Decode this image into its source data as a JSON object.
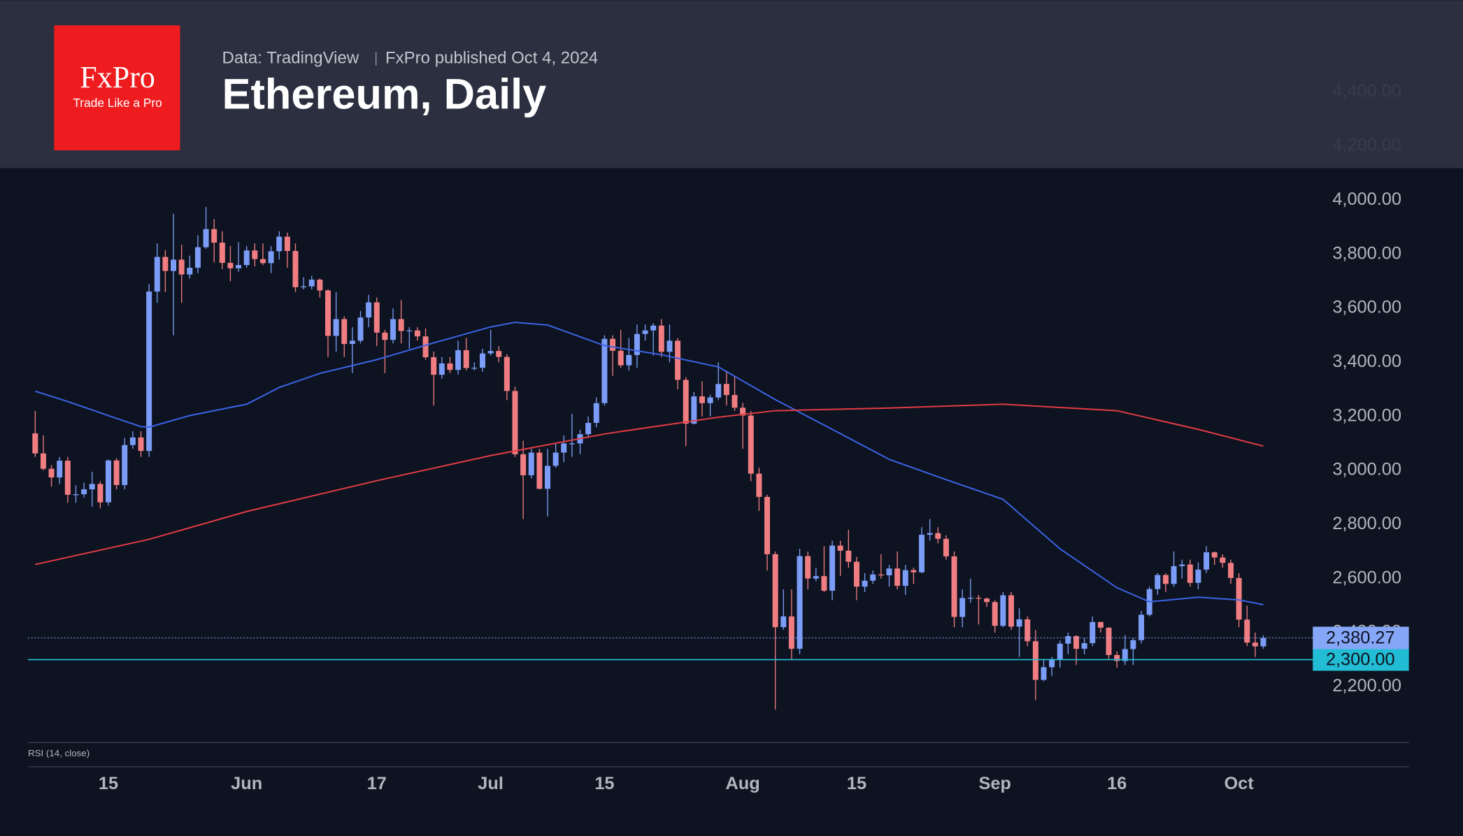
{
  "chart_data": {
    "type": "candlestick",
    "title": "Ethereum, Daily",
    "source": "Data: TradingView",
    "published": "FxPro published Oct 4, 2024",
    "brand": {
      "name": "FxPro",
      "tagline": "Trade Like a Pro"
    },
    "indicator_label": "RSI (14, close)",
    "up_color": "#7b9cf7",
    "down_color": "#f07d82",
    "xlim": [
      "2024-05-05",
      "2024-10-11"
    ],
    "ylim": [
      2000,
      4740
    ],
    "xticks": [
      {
        "value": "2024-05-15",
        "label": "15"
      },
      {
        "value": "2024-06-01",
        "label": "Jun"
      },
      {
        "value": "2024-06-17",
        "label": "17"
      },
      {
        "value": "2024-07-01",
        "label": "Jul"
      },
      {
        "value": "2024-07-15",
        "label": "15"
      },
      {
        "value": "2024-08-01",
        "label": "Aug"
      },
      {
        "value": "2024-08-15",
        "label": "15"
      },
      {
        "value": "2024-09-01",
        "label": "Sep"
      },
      {
        "value": "2024-09-16",
        "label": "16"
      },
      {
        "value": "2024-10-01",
        "label": "Oct"
      }
    ],
    "yticks": [
      {
        "value": 2200,
        "label": "2,200.00"
      },
      {
        "value": 2400,
        "label": "2,400.00"
      },
      {
        "value": 2600,
        "label": "2,600.00"
      },
      {
        "value": 2800,
        "label": "2,800.00"
      },
      {
        "value": 3000,
        "label": "3,000.00"
      },
      {
        "value": 3200,
        "label": "3,200.00"
      },
      {
        "value": 3400,
        "label": "3,400.00"
      },
      {
        "value": 3600,
        "label": "3,600.00"
      },
      {
        "value": 3800,
        "label": "3,800.00"
      },
      {
        "value": 4000,
        "label": "4,000.00"
      },
      {
        "value": 4200,
        "label": "4,200.00"
      },
      {
        "value": 4400,
        "label": "4,400.00"
      }
    ],
    "x": [
      "2024-05-06",
      "2024-05-07",
      "2024-05-08",
      "2024-05-09",
      "2024-05-10",
      "2024-05-11",
      "2024-05-12",
      "2024-05-13",
      "2024-05-14",
      "2024-05-15",
      "2024-05-16",
      "2024-05-17",
      "2024-05-18",
      "2024-05-19",
      "2024-05-20",
      "2024-05-21",
      "2024-05-22",
      "2024-05-23",
      "2024-05-24",
      "2024-05-25",
      "2024-05-26",
      "2024-05-27",
      "2024-05-28",
      "2024-05-29",
      "2024-05-30",
      "2024-05-31",
      "2024-06-01",
      "2024-06-02",
      "2024-06-03",
      "2024-06-04",
      "2024-06-05",
      "2024-06-06",
      "2024-06-07",
      "2024-06-08",
      "2024-06-09",
      "2024-06-10",
      "2024-06-11",
      "2024-06-12",
      "2024-06-13",
      "2024-06-14",
      "2024-06-15",
      "2024-06-16",
      "2024-06-17",
      "2024-06-18",
      "2024-06-19",
      "2024-06-20",
      "2024-06-21",
      "2024-06-22",
      "2024-06-23",
      "2024-06-24",
      "2024-06-25",
      "2024-06-26",
      "2024-06-27",
      "2024-06-28",
      "2024-06-29",
      "2024-06-30",
      "2024-07-01",
      "2024-07-02",
      "2024-07-03",
      "2024-07-04",
      "2024-07-05",
      "2024-07-06",
      "2024-07-07",
      "2024-07-08",
      "2024-07-09",
      "2024-07-10",
      "2024-07-11",
      "2024-07-12",
      "2024-07-13",
      "2024-07-14",
      "2024-07-15",
      "2024-07-16",
      "2024-07-17",
      "2024-07-18",
      "2024-07-19",
      "2024-07-20",
      "2024-07-21",
      "2024-07-22",
      "2024-07-23",
      "2024-07-24",
      "2024-07-25",
      "2024-07-26",
      "2024-07-27",
      "2024-07-28",
      "2024-07-29",
      "2024-07-30",
      "2024-07-31",
      "2024-08-01",
      "2024-08-02",
      "2024-08-03",
      "2024-08-04",
      "2024-08-05",
      "2024-08-06",
      "2024-08-07",
      "2024-08-08",
      "2024-08-09",
      "2024-08-10",
      "2024-08-11",
      "2024-08-12",
      "2024-08-13",
      "2024-08-14",
      "2024-08-15",
      "2024-08-16",
      "2024-08-17",
      "2024-08-18",
      "2024-08-19",
      "2024-08-20",
      "2024-08-21",
      "2024-08-22",
      "2024-08-23",
      "2024-08-24",
      "2024-08-25",
      "2024-08-26",
      "2024-08-27",
      "2024-08-28",
      "2024-08-29",
      "2024-08-30",
      "2024-08-31",
      "2024-09-01",
      "2024-09-02",
      "2024-09-03",
      "2024-09-04",
      "2024-09-05",
      "2024-09-06",
      "2024-09-07",
      "2024-09-08",
      "2024-09-09",
      "2024-09-10",
      "2024-09-11",
      "2024-09-12",
      "2024-09-13",
      "2024-09-14",
      "2024-09-15",
      "2024-09-16",
      "2024-09-17",
      "2024-09-18",
      "2024-09-19",
      "2024-09-20",
      "2024-09-21",
      "2024-09-22",
      "2024-09-23",
      "2024-09-24",
      "2024-09-25",
      "2024-09-26",
      "2024-09-27",
      "2024-09-28",
      "2024-09-29",
      "2024-09-30",
      "2024-10-01",
      "2024-10-02",
      "2024-10-03",
      "2024-10-04"
    ],
    "open": [
      3137,
      3063,
      3006,
      2974,
      3036,
      2910,
      2912,
      2930,
      2950,
      2882,
      3037,
      2946,
      3094,
      3122,
      3072,
      3662,
      3790,
      3738,
      3780,
      3725,
      3750,
      3826,
      3893,
      3843,
      3768,
      3748,
      3760,
      3814,
      3782,
      3767,
      3811,
      3865,
      3812,
      3678,
      3681,
      3706,
      3666,
      3498,
      3560,
      3468,
      3480,
      3566,
      3622,
      3510,
      3483,
      3560,
      3516,
      3518,
      3496,
      3419,
      3354,
      3396,
      3372,
      3445,
      3379,
      3380,
      3433,
      3442,
      3420,
      3294,
      3060,
      2982,
      3066,
      2932,
      3017,
      3066,
      3100,
      3100,
      3134,
      3176,
      3249,
      3487,
      3443,
      3389,
      3427,
      3505,
      3518,
      3536,
      3439,
      3480,
      3335,
      3173,
      3274,
      3249,
      3270,
      3320,
      3279,
      3232,
      3203,
      2988,
      2902,
      2690,
      2420,
      2460,
      2340,
      2683,
      2600,
      2609,
      2555,
      2722,
      2703,
      2662,
      2570,
      2592,
      2615,
      2612,
      2637,
      2573,
      2631,
      2623,
      2762,
      2768,
      2747,
      2682,
      2458,
      2528,
      2529,
      2526,
      2513,
      2425,
      2538,
      2422,
      2449,
      2368,
      2225,
      2272,
      2298,
      2359,
      2387,
      2340,
      2361,
      2439,
      2418,
      2317,
      2295,
      2339,
      2372,
      2466,
      2561,
      2613,
      2580,
      2646,
      2652,
      2584,
      2633,
      2697,
      2678,
      2658,
      2602,
      2448,
      2363,
      2349
    ],
    "high": [
      3220,
      3130,
      3020,
      3050,
      3050,
      2945,
      2955,
      2995,
      2960,
      3040,
      3045,
      3120,
      3145,
      3145,
      3690,
      3840,
      3815,
      3950,
      3835,
      3795,
      3870,
      3975,
      3930,
      3885,
      3830,
      3845,
      3830,
      3840,
      3840,
      3830,
      3885,
      3880,
      3840,
      3715,
      3720,
      3710,
      3670,
      3660,
      3570,
      3530,
      3590,
      3650,
      3640,
      3520,
      3600,
      3630,
      3530,
      3530,
      3525,
      3440,
      3420,
      3420,
      3480,
      3490,
      3400,
      3450,
      3520,
      3460,
      3430,
      3310,
      3110,
      3080,
      3080,
      3080,
      3100,
      3130,
      3210,
      3150,
      3200,
      3270,
      3500,
      3500,
      3520,
      3490,
      3540,
      3540,
      3545,
      3560,
      3540,
      3490,
      3345,
      3290,
      3330,
      3280,
      3400,
      3370,
      3350,
      3250,
      3220,
      3010,
      2910,
      2700,
      2560,
      2560,
      2710,
      2700,
      2640,
      2720,
      2740,
      2740,
      2780,
      2680,
      2620,
      2630,
      2690,
      2650,
      2700,
      2650,
      2640,
      2790,
      2820,
      2790,
      2760,
      2700,
      2560,
      2600,
      2540,
      2530,
      2520,
      2550,
      2550,
      2490,
      2460,
      2410,
      2300,
      2310,
      2370,
      2400,
      2390,
      2380,
      2460,
      2440,
      2420,
      2330,
      2390,
      2380,
      2480,
      2570,
      2620,
      2620,
      2700,
      2670,
      2670,
      2660,
      2720,
      2700,
      2690,
      2670,
      2620,
      2500,
      2400,
      2390
    ],
    "low": [
      3050,
      3000,
      2940,
      2950,
      2880,
      2880,
      2900,
      2865,
      2860,
      2870,
      2930,
      2930,
      3080,
      3050,
      3050,
      3620,
      3660,
      3500,
      3620,
      3710,
      3730,
      3820,
      3770,
      3745,
      3700,
      3735,
      3750,
      3755,
      3760,
      3730,
      3780,
      3750,
      3660,
      3670,
      3670,
      3640,
      3420,
      3440,
      3420,
      3360,
      3470,
      3530,
      3460,
      3360,
      3470,
      3470,
      3450,
      3480,
      3410,
      3240,
      3340,
      3360,
      3355,
      3370,
      3370,
      3365,
      3425,
      3400,
      3260,
      3050,
      2820,
      2970,
      2930,
      2830,
      3010,
      3030,
      3050,
      3060,
      3120,
      3160,
      3240,
      3350,
      3380,
      3370,
      3380,
      3480,
      3425,
      3420,
      3400,
      3300,
      3090,
      3170,
      3200,
      3200,
      3260,
      3240,
      3220,
      3080,
      2960,
      2850,
      2630,
      2115,
      2410,
      2300,
      2320,
      2560,
      2590,
      2550,
      2520,
      2610,
      2640,
      2520,
      2550,
      2580,
      2600,
      2570,
      2560,
      2540,
      2580,
      2620,
      2740,
      2730,
      2670,
      2420,
      2420,
      2510,
      2430,
      2495,
      2400,
      2420,
      2410,
      2310,
      2350,
      2150,
      2220,
      2240,
      2270,
      2320,
      2280,
      2320,
      2350,
      2400,
      2300,
      2270,
      2280,
      2280,
      2360,
      2460,
      2540,
      2550,
      2570,
      2600,
      2570,
      2560,
      2620,
      2650,
      2640,
      2580,
      2420,
      2350,
      2310,
      2340
    ],
    "close": [
      3063,
      3006,
      2974,
      3036,
      2910,
      2912,
      2930,
      2950,
      2882,
      3037,
      2946,
      3094,
      3122,
      3072,
      3662,
      3790,
      3738,
      3780,
      3725,
      3750,
      3826,
      3893,
      3843,
      3768,
      3748,
      3760,
      3814,
      3782,
      3767,
      3811,
      3865,
      3812,
      3678,
      3681,
      3706,
      3666,
      3498,
      3560,
      3468,
      3480,
      3566,
      3622,
      3510,
      3483,
      3560,
      3516,
      3518,
      3496,
      3419,
      3354,
      3396,
      3372,
      3445,
      3379,
      3380,
      3433,
      3442,
      3420,
      3294,
      3060,
      2982,
      3066,
      2932,
      3017,
      3066,
      3100,
      3100,
      3134,
      3176,
      3249,
      3487,
      3443,
      3389,
      3427,
      3505,
      3518,
      3536,
      3439,
      3480,
      3335,
      3173,
      3274,
      3249,
      3270,
      3320,
      3279,
      3232,
      3203,
      2988,
      2902,
      2690,
      2420,
      2460,
      2340,
      2683,
      2600,
      2609,
      2555,
      2722,
      2703,
      2662,
      2570,
      2592,
      2615,
      2612,
      2637,
      2573,
      2631,
      2623,
      2762,
      2768,
      2747,
      2682,
      2458,
      2528,
      2529,
      2526,
      2513,
      2425,
      2538,
      2422,
      2449,
      2368,
      2225,
      2272,
      2298,
      2359,
      2387,
      2340,
      2361,
      2439,
      2418,
      2317,
      2295,
      2339,
      2372,
      2466,
      2561,
      2613,
      2580,
      2646,
      2652,
      2584,
      2633,
      2697,
      2678,
      2658,
      2602,
      2448,
      2363,
      2349,
      2380.27
    ],
    "lines": [
      {
        "color": "#3b63e6",
        "x": [
          "2024-05-06",
          "2024-05-10",
          "2024-05-15",
          "2024-05-19",
          "2024-05-20",
          "2024-05-25",
          "2024-06-01",
          "2024-06-05",
          "2024-06-10",
          "2024-06-17",
          "2024-06-24",
          "2024-07-01",
          "2024-07-04",
          "2024-07-08",
          "2024-07-15",
          "2024-07-22",
          "2024-07-29",
          "2024-08-05",
          "2024-08-12",
          "2024-08-19",
          "2024-08-26",
          "2024-09-02",
          "2024-09-09",
          "2024-09-16",
          "2024-09-20",
          "2024-09-26",
          "2024-10-01",
          "2024-10-04"
        ],
        "values": [
          3293,
          3255,
          3203,
          3162,
          3160,
          3203,
          3245,
          3307,
          3359,
          3410,
          3472,
          3531,
          3548,
          3538,
          3462,
          3428,
          3383,
          3262,
          3152,
          3041,
          2966,
          2893,
          2710,
          2566,
          2514,
          2531,
          2521,
          2503
        ]
      },
      {
        "color": "#e23b45",
        "x": [
          "2024-05-06",
          "2024-05-20",
          "2024-06-01",
          "2024-06-17",
          "2024-07-01",
          "2024-07-15",
          "2024-07-29",
          "2024-08-05",
          "2024-08-19",
          "2024-09-02",
          "2024-09-16",
          "2024-09-26",
          "2024-10-04"
        ],
        "values": [
          2652,
          2745,
          2848,
          2962,
          3055,
          3135,
          3197,
          3221,
          3231,
          3245,
          3221,
          3152,
          3090
        ]
      }
    ],
    "last_price": {
      "value": 2380.27,
      "label": "2,380.27",
      "color": "#86a6f8"
    },
    "level": {
      "value": 2300,
      "label": "2,300.00",
      "color": "#22bcd4"
    }
  }
}
